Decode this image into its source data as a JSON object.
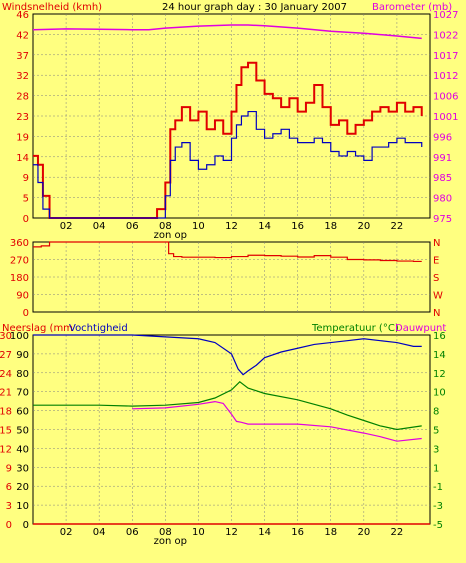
{
  "colors": {
    "bg": "#ffff80",
    "wind": "#e00000",
    "gust_line": "#0000c0",
    "baro": "#e000e0",
    "humidity": "#0000c0",
    "temp": "#008000",
    "dew": "#e000e0",
    "rain": "#e00000",
    "grid": "#808080"
  },
  "top": {
    "left_title": "Windsnelheid (kmh)",
    "center_title": "24 hour graph day : 30 January 2007",
    "right_title": "Barometer (mb)"
  },
  "mid": {
    "dir_labels": [
      "N",
      "W",
      "S",
      "E",
      "N"
    ]
  },
  "bottom": {
    "left_title_a": "Neerslag (mm",
    "left_title_b": "Vochtigheid",
    "right_title_a": "Temperatuur (°C)",
    "right_title_b": "Dauwpunt"
  },
  "x_axis": {
    "ticks": [
      "02",
      "04",
      "06",
      "08",
      "10",
      "12",
      "14",
      "16",
      "18",
      "20",
      "22"
    ],
    "marker_label": "zon op"
  },
  "chart_data": [
    {
      "type": "line",
      "title": "24 hour graph day : 30 January 2007",
      "x_range": [
        0,
        24
      ],
      "y_left": {
        "label": "Windsnelheid (kmh)",
        "ticks": [
          "0",
          "5",
          "9",
          "14",
          "19",
          "23",
          "28",
          "32",
          "37",
          "42",
          "46"
        ],
        "ylim": [
          0,
          46
        ]
      },
      "y_right": {
        "label": "Barometer (mb)",
        "ticks": [
          "975",
          "980",
          "985",
          "991",
          "996",
          "1001",
          "1006",
          "1012",
          "1017",
          "1022",
          "1027"
        ],
        "ylim": [
          975,
          1027
        ]
      },
      "series": [
        {
          "axis": "left",
          "x": [
            0,
            0.3,
            0.6,
            1,
            2,
            4,
            6,
            7,
            7.5,
            8,
            8.3,
            8.6,
            9,
            9.5,
            10,
            10.5,
            11,
            11.5,
            12,
            12.3,
            12.6,
            13,
            13.5,
            14,
            14.5,
            15,
            15.5,
            16,
            16.5,
            17,
            17.5,
            18,
            18.5,
            19,
            19.5,
            20,
            20.5,
            21,
            21.5,
            22,
            22.5,
            23,
            23.5
          ],
          "values": [
            14,
            12,
            5,
            0,
            0,
            0,
            0,
            0,
            2,
            8,
            20,
            22,
            25,
            22,
            24,
            20,
            22,
            19,
            24,
            30,
            34,
            35,
            31,
            28,
            27,
            25,
            27,
            24,
            26,
            30,
            25,
            21,
            22,
            19,
            21,
            22,
            24,
            25,
            24,
            26,
            24,
            25,
            23
          ]
        },
        {
          "axis": "left",
          "x": [
            0,
            0.3,
            0.6,
            1,
            2,
            4,
            6,
            7.5,
            7.9,
            8,
            8.3,
            8.6,
            9,
            9.5,
            10,
            10.5,
            11,
            11.5,
            12,
            12.3,
            12.6,
            13,
            13.5,
            14,
            14.5,
            15,
            15.5,
            16,
            16.5,
            17,
            17.5,
            18,
            18.5,
            19,
            19.5,
            20,
            20.5,
            21,
            21.5,
            22,
            22.5,
            23,
            23.5
          ],
          "values": [
            12,
            8,
            2,
            0,
            0,
            0,
            0,
            0,
            0,
            5,
            13,
            16,
            17,
            13,
            11,
            12,
            14,
            13,
            18,
            21,
            23,
            24,
            20,
            18,
            19,
            20,
            18,
            17,
            17,
            18,
            17,
            15,
            14,
            15,
            14,
            13,
            16,
            16,
            17,
            18,
            17,
            17,
            16
          ]
        },
        {
          "name": "Barometer (mb)",
          "axis": "right",
          "x": [
            0,
            2,
            4,
            6,
            7,
            8,
            10,
            12,
            13,
            14,
            16,
            18,
            20,
            22,
            23.5
          ],
          "values": [
            1023,
            1023.2,
            1023.1,
            1023,
            1023,
            1023.4,
            1023.9,
            1024.2,
            1024.2,
            1024,
            1023.4,
            1022.6,
            1022.1,
            1021.4,
            1020.8
          ]
        }
      ]
    },
    {
      "type": "line",
      "x_range": [
        0,
        24
      ],
      "y_left": {
        "ticks": [
          "0",
          "90",
          "180",
          "270",
          "360"
        ],
        "ylim": [
          0,
          360
        ]
      },
      "y_right": {
        "ticks": [
          "N",
          "W",
          "S",
          "E",
          "N"
        ]
      },
      "series": [
        {
          "x": [
            0,
            0.5,
            1,
            2,
            3,
            4,
            5,
            6,
            7,
            8,
            8.2,
            8.5,
            9,
            10,
            11,
            12,
            13,
            14,
            15,
            16,
            17,
            18,
            19,
            20,
            21,
            22,
            23,
            23.5
          ],
          "values": [
            335,
            340,
            360,
            360,
            360,
            360,
            360,
            360,
            360,
            360,
            300,
            285,
            282,
            282,
            280,
            285,
            292,
            290,
            287,
            283,
            290,
            282,
            270,
            268,
            265,
            262,
            260,
            260
          ]
        }
      ]
    },
    {
      "type": "line",
      "x_range": [
        0,
        24
      ],
      "y_left_a": {
        "label": "Neerslag (mm",
        "ticks": [
          "0",
          "3",
          "6",
          "9",
          "12",
          "15",
          "18",
          "21",
          "24",
          "27",
          "30"
        ],
        "ylim": [
          0,
          30
        ]
      },
      "y_left_b": {
        "label": "Vochtigheid",
        "ticks": [
          "0",
          "10",
          "20",
          "30",
          "40",
          "50",
          "60",
          "70",
          "80",
          "90",
          "100"
        ],
        "ylim": [
          0,
          100
        ]
      },
      "y_right": {
        "label": "Temperatuur (°C)",
        "ticks": [
          "-5",
          "-3",
          "-1",
          "1",
          "3",
          "5",
          "8",
          "10",
          "12",
          "14",
          "16"
        ],
        "ylim": [
          -5,
          16
        ]
      },
      "series": [
        {
          "name": "Vochtigheid",
          "axis": "left_b",
          "x": [
            0,
            2,
            4,
            6,
            8,
            10,
            11,
            12,
            12.4,
            12.7,
            13,
            13.5,
            14,
            15,
            16,
            17,
            18,
            19,
            20,
            21,
            22,
            23,
            23.5
          ],
          "values": [
            100,
            100,
            100,
            100,
            99,
            98,
            96,
            90,
            82,
            79,
            81,
            84,
            88,
            91,
            93,
            95,
            96,
            97,
            98,
            97,
            96,
            94,
            94
          ]
        },
        {
          "name": "Temperatuur (°C)",
          "axis": "right",
          "x": [
            0,
            2,
            4,
            6,
            8,
            10,
            11,
            12,
            12.5,
            13,
            14,
            16,
            18,
            19,
            20,
            21,
            22,
            23.5
          ],
          "values": [
            8.2,
            8.2,
            8.2,
            8.1,
            8.2,
            8.5,
            9,
            9.9,
            10.8,
            10.1,
            9.5,
            8.8,
            7.8,
            7.1,
            6.5,
            5.9,
            5.5,
            5.9
          ]
        },
        {
          "name": "Dauwpunt",
          "axis": "right",
          "x": [
            6,
            8,
            10,
            11,
            11.5,
            12,
            12.3,
            12.6,
            13,
            14,
            16,
            18,
            20,
            21,
            22,
            23.5
          ],
          "values": [
            7.8,
            7.9,
            8.3,
            8.6,
            8.4,
            7.2,
            6.4,
            6.3,
            6.1,
            6.1,
            6.1,
            5.8,
            5.1,
            4.7,
            4.2,
            4.5
          ]
        },
        {
          "name": "Neerslag (mm",
          "axis": "left_a",
          "x": [
            0,
            24
          ],
          "values": [
            0,
            0
          ]
        }
      ]
    }
  ]
}
